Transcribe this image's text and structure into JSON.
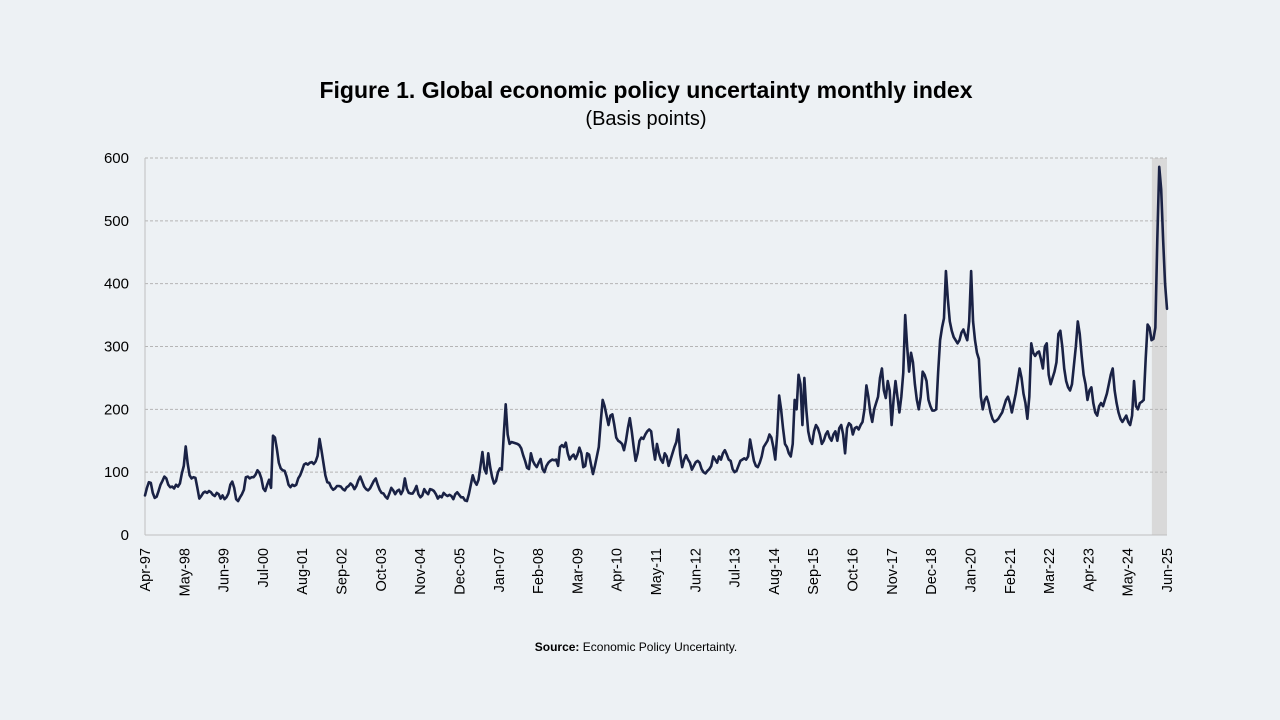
{
  "title": "Figure 1. Global economic policy uncertainty monthly index",
  "subtitle": "(Basis points)",
  "source": {
    "label": "Source:",
    "text": "Economic Policy Uncertainty."
  },
  "chart_data": {
    "type": "line",
    "title": "Figure 1. Global economic policy uncertainty monthly index",
    "ylabel": "",
    "xlabel": "",
    "ylim": [
      0,
      600
    ],
    "yticks": [
      0,
      100,
      200,
      300,
      400,
      500,
      600
    ],
    "grid": "horizontal dashed",
    "x_start": "1997-04",
    "x_end": "2025-06",
    "xtick_labels": [
      "Apr-97",
      "May-98",
      "Jun-99",
      "Jul-00",
      "Aug-01",
      "Sep-02",
      "Oct-03",
      "Nov-04",
      "Dec-05",
      "Jan-07",
      "Feb-08",
      "Mar-09",
      "Apr-10",
      "May-11",
      "Jun-12",
      "Jul-13",
      "Aug-14",
      "Sep-15",
      "Oct-16",
      "Nov-17",
      "Dec-18",
      "Jan-20",
      "Feb-21",
      "Mar-22",
      "Apr-23",
      "May-24",
      "Jun-25"
    ],
    "shaded_region": {
      "from": "2025-01",
      "to": "2025-06",
      "color": "#d9d9d9"
    },
    "series": [
      {
        "color": "#1a2245",
        "values": [
          63,
          75,
          84,
          83,
          67,
          59,
          61,
          70,
          80,
          86,
          93,
          90,
          80,
          76,
          77,
          74,
          80,
          77,
          82,
          98,
          110,
          141,
          114,
          95,
          90,
          92,
          91,
          75,
          58,
          62,
          67,
          69,
          67,
          70,
          68,
          64,
          62,
          67,
          65,
          58,
          63,
          57,
          60,
          66,
          80,
          85,
          75,
          57,
          54,
          60,
          65,
          72,
          92,
          93,
          90,
          92,
          92,
          96,
          103,
          99,
          90,
          74,
          70,
          80,
          88,
          75,
          158,
          155,
          137,
          115,
          106,
          103,
          102,
          93,
          80,
          76,
          80,
          78,
          80,
          90,
          95,
          103,
          112,
          114,
          112,
          115,
          116,
          113,
          117,
          126,
          153,
          135,
          115,
          95,
          84,
          83,
          76,
          72,
          74,
          78,
          78,
          77,
          73,
          71,
          76,
          78,
          82,
          79,
          73,
          78,
          87,
          93,
          85,
          77,
          73,
          71,
          74,
          80,
          86,
          90,
          80,
          72,
          67,
          66,
          61,
          58,
          66,
          75,
          71,
          65,
          70,
          72,
          65,
          71,
          90,
          74,
          67,
          66,
          66,
          71,
          78,
          65,
          60,
          63,
          73,
          68,
          65,
          73,
          72,
          70,
          65,
          58,
          62,
          60,
          67,
          64,
          62,
          64,
          62,
          57,
          65,
          68,
          64,
          60,
          60,
          55,
          54,
          65,
          80,
          95,
          85,
          80,
          88,
          110,
          132,
          105,
          98,
          130,
          108,
          92,
          82,
          86,
          100,
          106,
          104,
          160,
          208,
          160,
          145,
          148,
          147,
          146,
          145,
          143,
          138,
          127,
          118,
          107,
          105,
          130,
          118,
          112,
          108,
          115,
          121,
          105,
          100,
          110,
          115,
          118,
          120,
          119,
          120,
          110,
          140,
          143,
          140,
          147,
          130,
          120,
          125,
          128,
          121,
          128,
          139,
          130,
          108,
          110,
          130,
          128,
          112,
          97,
          110,
          125,
          140,
          180,
          215,
          205,
          190,
          175,
          190,
          192,
          175,
          155,
          150,
          148,
          145,
          135,
          150,
          170,
          186,
          165,
          140,
          118,
          130,
          150,
          155,
          153,
          160,
          165,
          168,
          165,
          140,
          120,
          145,
          130,
          120,
          115,
          130,
          125,
          110,
          120,
          130,
          140,
          148,
          168,
          128,
          108,
          120,
          127,
          120,
          115,
          104,
          110,
          116,
          118,
          115,
          105,
          100,
          98,
          102,
          105,
          110,
          125,
          120,
          115,
          125,
          120,
          130,
          135,
          128,
          120,
          118,
          105,
          100,
          102,
          110,
          118,
          120,
          122,
          120,
          125,
          152,
          135,
          118,
          110,
          108,
          115,
          125,
          140,
          145,
          150,
          160,
          155,
          140,
          120,
          160,
          222,
          200,
          170,
          145,
          140,
          130,
          125,
          145,
          215,
          200,
          255,
          240,
          175,
          250,
          200,
          165,
          150,
          145,
          165,
          175,
          170,
          160,
          145,
          150,
          160,
          165,
          155,
          150,
          160,
          165,
          150,
          170,
          175,
          160,
          130,
          170,
          178,
          175,
          160,
          170,
          172,
          168,
          175,
          180,
          200,
          238,
          220,
          195,
          180,
          200,
          210,
          220,
          250,
          265,
          230,
          218,
          245,
          230,
          175,
          215,
          245,
          220,
          195,
          220,
          258,
          350,
          300,
          260,
          290,
          275,
          240,
          215,
          200,
          220,
          260,
          255,
          245,
          215,
          205,
          198,
          198,
          200,
          260,
          310,
          330,
          345,
          420,
          375,
          340,
          325,
          315,
          310,
          305,
          310,
          322,
          327,
          318,
          310,
          340,
          420,
          340,
          310,
          290,
          280,
          220,
          200,
          215,
          220,
          210,
          195,
          185,
          180,
          182,
          185,
          190,
          195,
          205,
          215,
          220,
          210,
          195,
          210,
          225,
          245,
          265,
          250,
          225,
          210,
          185,
          220,
          305,
          290,
          285,
          290,
          292,
          280,
          265,
          300,
          305,
          255,
          240,
          250,
          260,
          275,
          320,
          325,
          300,
          265,
          245,
          235,
          230,
          240,
          270,
          300,
          340,
          320,
          285,
          255,
          240,
          215,
          230,
          235,
          210,
          195,
          190,
          205,
          210,
          205,
          215,
          225,
          240,
          255,
          265,
          230,
          210,
          195,
          185,
          180,
          185,
          190,
          180,
          175,
          190,
          245,
          205,
          200,
          210,
          212,
          215,
          280,
          335,
          330,
          310,
          312,
          330,
          470,
          586,
          550,
          470,
          400,
          360
        ]
      }
    ]
  }
}
